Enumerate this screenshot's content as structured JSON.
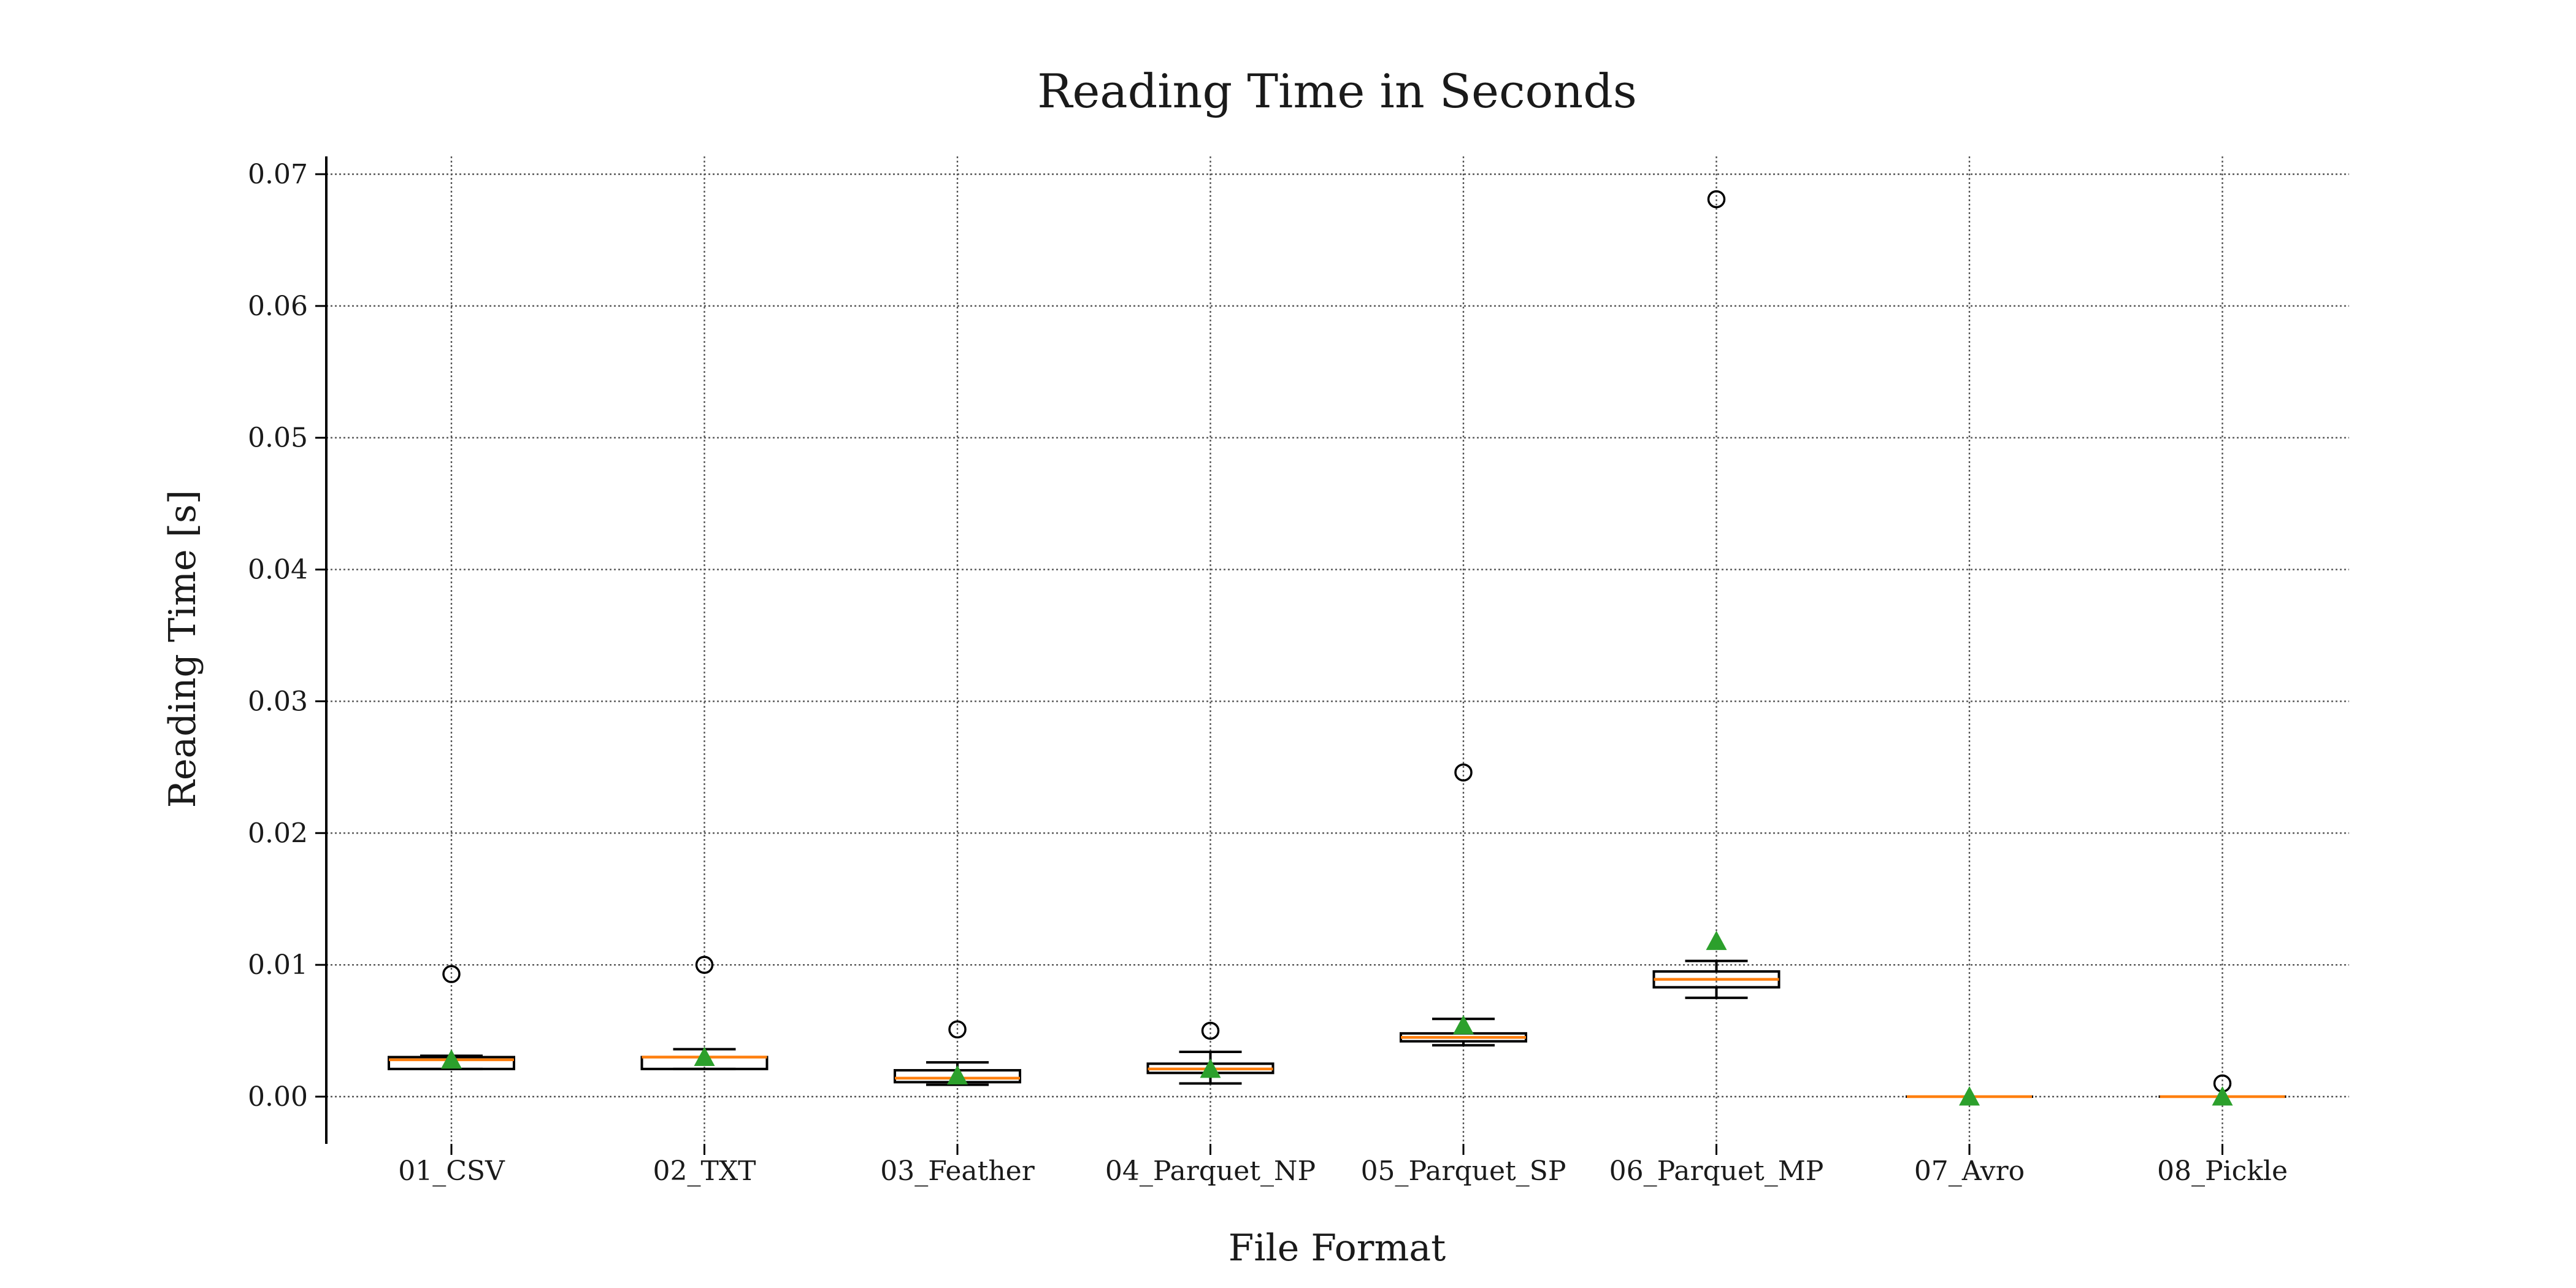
{
  "chart_data": {
    "type": "box",
    "title": "Reading Time in Seconds",
    "xlabel": "File Format",
    "ylabel": "Reading Time [s]",
    "ylim": [
      -0.0035,
      0.0715
    ],
    "yticks": [
      0.0,
      0.01,
      0.02,
      0.03,
      0.04,
      0.05,
      0.06,
      0.07
    ],
    "ytick_labels": [
      "0.00",
      "0.01",
      "0.02",
      "0.03",
      "0.04",
      "0.05",
      "0.06",
      "0.07"
    ],
    "grid": true,
    "categories": [
      "01_CSV",
      "02_TXT",
      "03_Feather",
      "04_Parquet_NP",
      "05_Parquet_SP",
      "06_Parquet_MP",
      "07_Avro",
      "08_Pickle"
    ],
    "boxes": [
      {
        "whisker_low": 0.0021,
        "q1": 0.0021,
        "median": 0.0028,
        "q3": 0.003,
        "whisker_high": 0.0031,
        "mean": 0.0028,
        "outliers": [
          0.0093
        ]
      },
      {
        "whisker_low": 0.0021,
        "q1": 0.0021,
        "median": 0.003,
        "q3": 0.003,
        "whisker_high": 0.0036,
        "mean": 0.003,
        "outliers": [
          0.01
        ]
      },
      {
        "whisker_low": 0.0009,
        "q1": 0.0011,
        "median": 0.0014,
        "q3": 0.002,
        "whisker_high": 0.0026,
        "mean": 0.0016,
        "outliers": [
          0.0051
        ]
      },
      {
        "whisker_low": 0.001,
        "q1": 0.0018,
        "median": 0.0021,
        "q3": 0.0025,
        "whisker_high": 0.0034,
        "mean": 0.0021,
        "outliers": [
          0.005
        ]
      },
      {
        "whisker_low": 0.0039,
        "q1": 0.0042,
        "median": 0.0045,
        "q3": 0.0048,
        "whisker_high": 0.0059,
        "mean": 0.0054,
        "outliers": [
          0.0246
        ]
      },
      {
        "whisker_low": 0.0075,
        "q1": 0.0083,
        "median": 0.0089,
        "q3": 0.0095,
        "whisker_high": 0.0103,
        "mean": 0.0118,
        "outliers": [
          0.0681
        ]
      },
      {
        "whisker_low": 0.0,
        "q1": 0.0,
        "median": 0.0,
        "q3": 0.0,
        "whisker_high": 0.0,
        "mean": 0.0,
        "outliers": []
      },
      {
        "whisker_low": 0.0,
        "q1": 0.0,
        "median": 0.0,
        "q3": 0.0,
        "whisker_high": 0.0,
        "mean": 0.0,
        "outliers": [
          0.001
        ]
      }
    ],
    "colors": {
      "box": "#000000",
      "median": "#ff7f0e",
      "mean": "#2ca02c",
      "grid": "#555555"
    }
  }
}
